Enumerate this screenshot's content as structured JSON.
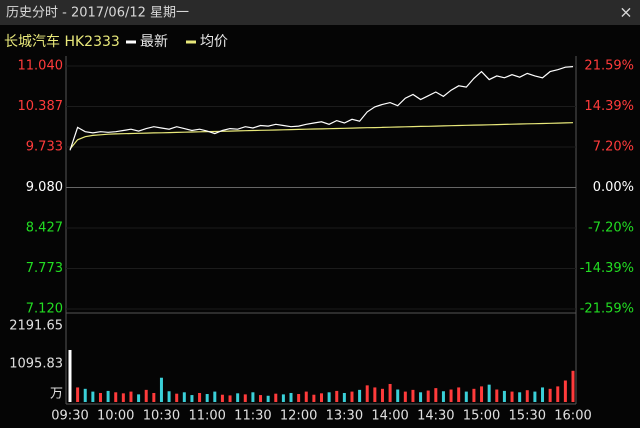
{
  "window": {
    "title": "历史分时 - 2017/06/12 星期一",
    "close": "×"
  },
  "chart_data": {
    "type": "line",
    "stock": "长城汽车 HK2333",
    "categories": [
      "09:30",
      null,
      null,
      null,
      null,
      null,
      "10:00",
      null,
      null,
      null,
      null,
      null,
      "10:30",
      null,
      null,
      null,
      null,
      null,
      "11:00",
      null,
      null,
      null,
      null,
      null,
      "11:30",
      null,
      null,
      null,
      null,
      null,
      "12:00",
      null,
      null,
      null,
      null,
      null,
      "13:30",
      null,
      null,
      null,
      null,
      null,
      "14:00",
      null,
      null,
      null,
      null,
      null,
      "14:30",
      null,
      null,
      null,
      null,
      null,
      "15:00",
      null,
      null,
      null,
      null,
      null,
      "15:30",
      null,
      null,
      null,
      null,
      null,
      "16:00"
    ],
    "series": [
      {
        "name": "最新",
        "color": "#ffffff",
        "values": [
          9.68,
          10.05,
          9.98,
          9.96,
          9.98,
          9.97,
          9.98,
          10.0,
          10.02,
          9.99,
          10.03,
          10.06,
          10.04,
          10.02,
          10.06,
          10.03,
          10.0,
          10.02,
          9.99,
          9.95,
          10.0,
          10.03,
          10.02,
          10.06,
          10.04,
          10.08,
          10.07,
          10.1,
          10.08,
          10.06,
          10.07,
          10.1,
          10.12,
          10.14,
          10.1,
          10.16,
          10.12,
          10.18,
          10.15,
          10.3,
          10.38,
          10.42,
          10.45,
          10.4,
          10.52,
          10.58,
          10.5,
          10.56,
          10.62,
          10.55,
          10.65,
          10.72,
          10.7,
          10.84,
          10.95,
          10.82,
          10.88,
          10.85,
          10.9,
          10.86,
          10.92,
          10.88,
          10.85,
          10.95,
          10.98,
          11.02,
          11.03
        ]
      },
      {
        "name": "均价",
        "color": "#e8e87a",
        "values": [
          9.7,
          9.85,
          9.9,
          9.92,
          9.93,
          9.94,
          9.945,
          9.948,
          9.951,
          9.954,
          9.957,
          9.96,
          9.963,
          9.966,
          9.969,
          9.972,
          9.975,
          9.978,
          9.981,
          9.984,
          9.987,
          9.99,
          9.993,
          9.996,
          9.999,
          10.002,
          10.005,
          10.008,
          10.011,
          10.014,
          10.017,
          10.02,
          10.023,
          10.026,
          10.029,
          10.032,
          10.035,
          10.038,
          10.041,
          10.044,
          10.047,
          10.05,
          10.053,
          10.056,
          10.059,
          10.062,
          10.065,
          10.068,
          10.071,
          10.074,
          10.077,
          10.08,
          10.083,
          10.086,
          10.089,
          10.092,
          10.095,
          10.098,
          10.101,
          10.104,
          10.107,
          10.11,
          10.113,
          10.116,
          10.119,
          10.122,
          10.125
        ]
      }
    ],
    "ylim": [
      7.12,
      11.04
    ],
    "yticks": [
      {
        "value": 11.04,
        "label": "11.040"
      },
      10.387,
      9.733,
      {
        "value": 9.08,
        "label": "9.080"
      },
      8.427,
      7.773,
      {
        "value": 7.12,
        "label": "7.120"
      }
    ],
    "y2lim": [
      -21.59,
      21.59
    ],
    "y2ticks": [
      {
        "value": 21.59,
        "label": "21.59%"
      },
      {
        "value": 14.39,
        "label": "14.39%"
      },
      {
        "value": 7.2,
        "label": "7.20%"
      },
      {
        "value": 0,
        "label": "0.00%"
      },
      {
        "value": -7.2,
        "label": "-7.20%"
      },
      {
        "value": -14.39,
        "label": "-14.39%"
      },
      {
        "value": -21.59,
        "label": "-21.59%"
      }
    ],
    "up_color": "#ff3b3b",
    "down_color": "#22dd22",
    "flat_color": "#ffffff",
    "volume": {
      "unit": "万",
      "ylim": [
        0,
        2191.65
      ],
      "yticks": [
        2191.65,
        1095.83
      ],
      "values": [
        1500,
        420,
        380,
        300,
        260,
        320,
        280,
        250,
        300,
        220,
        350,
        260,
        700,
        310,
        240,
        280,
        200,
        260,
        230,
        300,
        210,
        190,
        250,
        220,
        280,
        200,
        180,
        240,
        220,
        260,
        230,
        300,
        210,
        250,
        280,
        320,
        260,
        300,
        350,
        480,
        420,
        380,
        520,
        360,
        300,
        350,
        280,
        330,
        400,
        310,
        360,
        420,
        300,
        380,
        450,
        500,
        360,
        320,
        300,
        280,
        340,
        300,
        420,
        380,
        450,
        620,
        900
      ],
      "up_color": "#ff3b3b",
      "down_color": "#3ad0d8",
      "flat_color": "#ffffff"
    }
  }
}
